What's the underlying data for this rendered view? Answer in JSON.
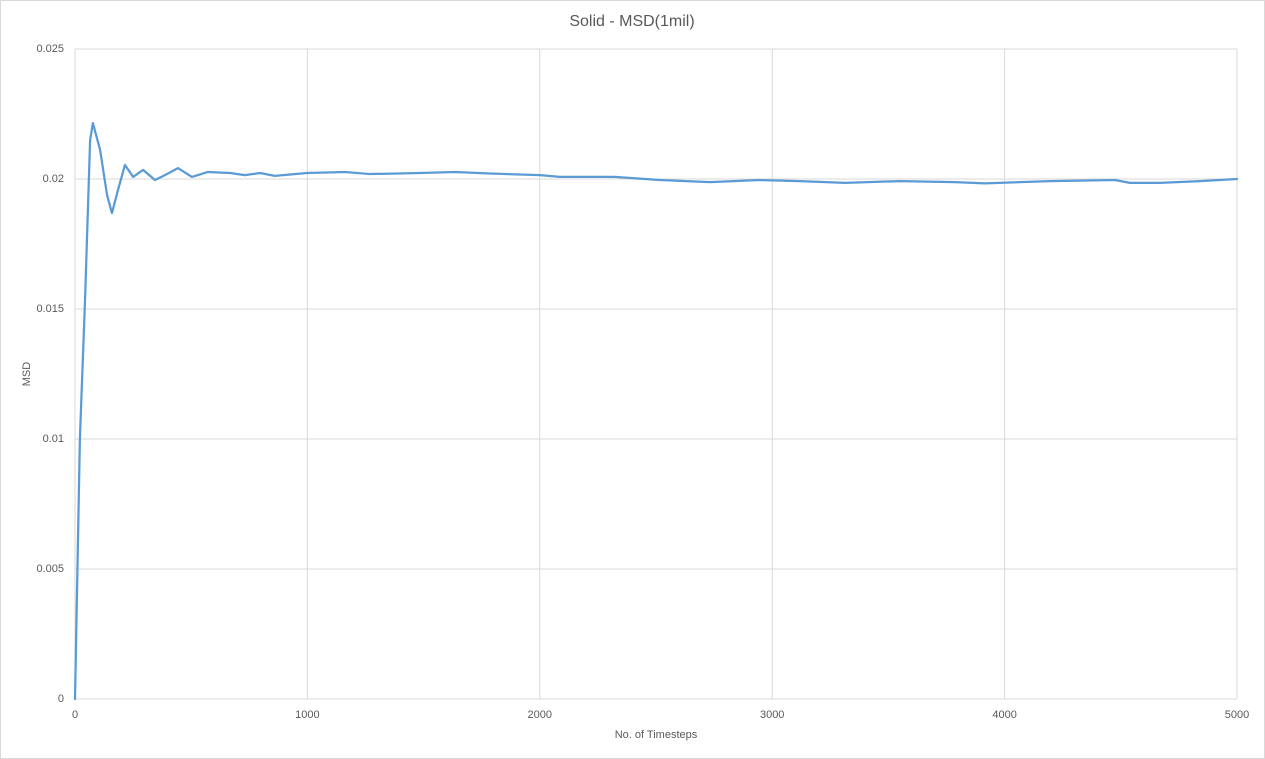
{
  "chart_data": {
    "type": "line",
    "title": "Solid - MSD(1mil)",
    "xlabel": "No. of Timesteps",
    "ylabel": "MSD",
    "x": [
      0,
      21,
      43,
      65,
      77,
      108,
      138,
      159,
      185,
      215,
      250,
      293,
      344,
      387,
      443,
      503,
      572,
      667,
      731,
      796,
      860,
      998,
      1162,
      1269,
      1484,
      1635,
      1786,
      2000,
      2087,
      2323,
      2517,
      2732,
      2947,
      3119,
      3313,
      3550,
      3786,
      3915,
      4195,
      4475,
      4539,
      4669,
      4840,
      5000
    ],
    "values": [
      0,
      0.01,
      0.0153,
      0.0215,
      0.02215,
      0.02112,
      0.01938,
      0.01869,
      0.01958,
      0.02054,
      0.02008,
      0.02035,
      0.01996,
      0.02015,
      0.02042,
      0.02008,
      0.02027,
      0.02023,
      0.02015,
      0.02023,
      0.02012,
      0.02023,
      0.02027,
      0.02019,
      0.02023,
      0.02027,
      0.02021,
      0.02015,
      0.02008,
      0.02008,
      0.01996,
      0.01988,
      0.01996,
      0.01992,
      0.01985,
      0.01992,
      0.01988,
      0.01983,
      0.01992,
      0.01996,
      0.01985,
      0.01985,
      0.01992,
      0.02
    ],
    "color": "#5b9bd5",
    "xlim": [
      0,
      5000
    ],
    "xticks": [
      0,
      1000,
      2000,
      3000,
      4000,
      5000
    ],
    "ylim": [
      0,
      0.025
    ],
    "yticks": [
      0,
      0.005,
      0.01,
      0.015,
      0.02,
      0.025
    ],
    "grid": true
  }
}
